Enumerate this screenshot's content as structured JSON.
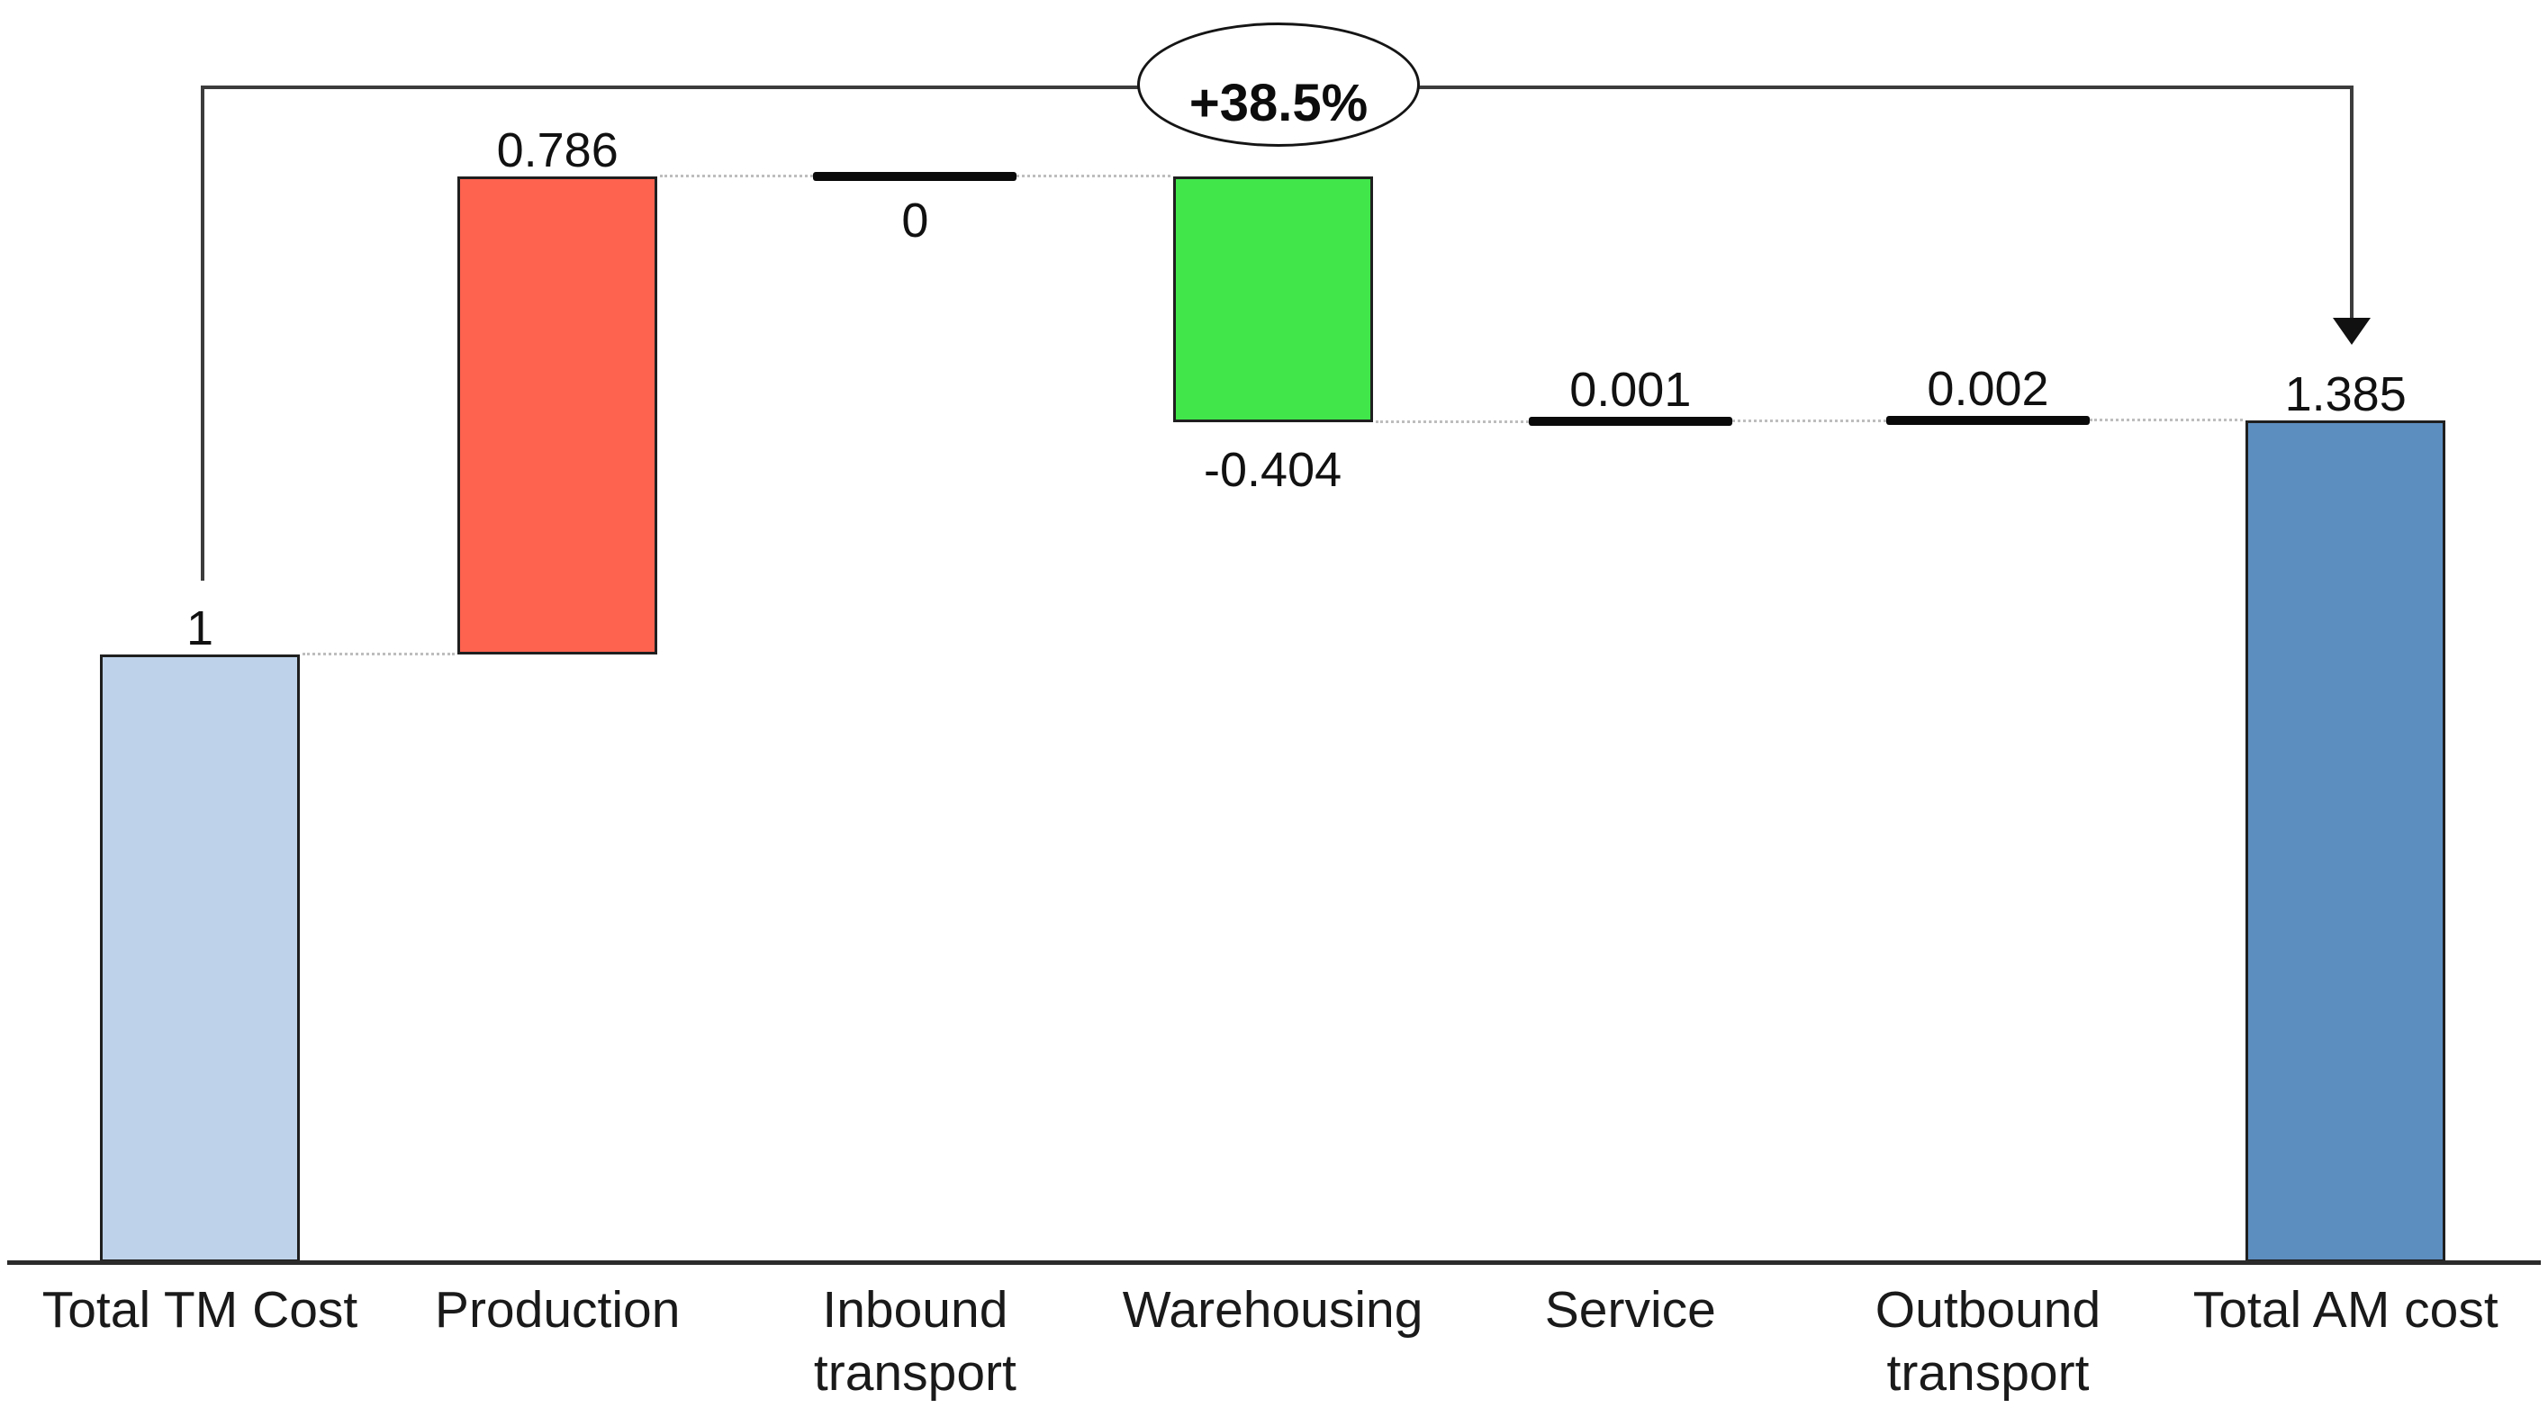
{
  "chart_data": {
    "type": "bar",
    "subtype": "waterfall",
    "title": "",
    "xlabel": "",
    "ylabel": "",
    "grid": false,
    "legend": "none",
    "ylim": [
      0,
      1.9
    ],
    "categories": [
      "Total TM Cost",
      "Production",
      "Inbound\ntransport",
      "Warehousing",
      "Service",
      "Outbound\ntransport",
      "Total AM cost"
    ],
    "values": [
      1,
      0.786,
      0,
      -0.404,
      0.001,
      0.002,
      1.385
    ],
    "items": [
      {
        "label": "Total TM Cost",
        "kind": "total",
        "style": "bar",
        "value": 1,
        "value_label": "1",
        "label_position": "above",
        "color": "#bed3ea"
      },
      {
        "label": "Production",
        "kind": "delta",
        "style": "bar",
        "value": 0.786,
        "value_label": "0.786",
        "label_position": "above",
        "color": "#fe6350"
      },
      {
        "label": "Inbound\ntransport",
        "kind": "delta",
        "style": "line",
        "value": 0,
        "value_label": "0",
        "label_position": "below",
        "color": "#0a0a0a"
      },
      {
        "label": "Warehousing",
        "kind": "delta",
        "style": "bar",
        "value": -0.404,
        "value_label": "-0.404",
        "label_position": "below",
        "color": "#41e64b"
      },
      {
        "label": "Service",
        "kind": "delta",
        "style": "line",
        "value": 0.001,
        "value_label": "0.001",
        "label_position": "above",
        "color": "#0a0a0a"
      },
      {
        "label": "Outbound\ntransport",
        "kind": "delta",
        "style": "line",
        "value": 0.002,
        "value_label": "0.002",
        "label_position": "above",
        "color": "#0a0a0a"
      },
      {
        "label": "Total AM cost",
        "kind": "total",
        "style": "bar",
        "value": 1.385,
        "value_label": "1.385",
        "label_position": "above",
        "color": "#5d8ec0"
      }
    ],
    "annotation": {
      "text": "+38.5%"
    },
    "style": {
      "bar_border_color": "#1f1f1f",
      "axis_color": "#2b2b2b",
      "bracket_color": "#3c3c3c",
      "dotted_connector_color": "#bdbdbd",
      "background": "#ffffff"
    }
  }
}
